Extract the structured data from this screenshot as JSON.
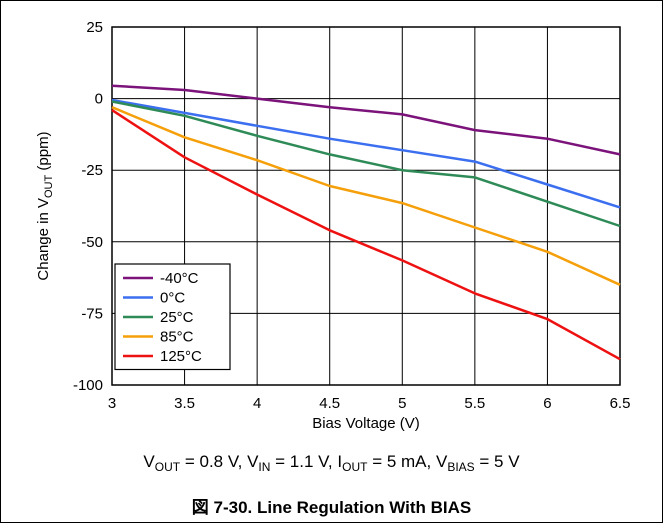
{
  "chart_data": {
    "type": "line",
    "xlabel": "Bias Voltage (V)",
    "ylabel_parts": {
      "main": "Change in V",
      "sub": "OUT",
      "suffix": " (ppm)"
    },
    "xlim": [
      3,
      6.5
    ],
    "ylim": [
      -100,
      25
    ],
    "x_ticks": [
      3,
      3.5,
      4,
      4.5,
      5,
      5.5,
      6,
      6.5
    ],
    "x_tick_labels": [
      "3",
      "3.5",
      "4",
      "4.5",
      "5",
      "5.5",
      "6",
      "6.5"
    ],
    "y_ticks": [
      25,
      0,
      -25,
      -50,
      -75,
      -100
    ],
    "y_tick_labels": [
      "25",
      "0",
      "-25",
      "-50",
      "-75",
      "-100"
    ],
    "grid": true,
    "legend_position": "bottom-left",
    "x": [
      3,
      3.5,
      4,
      4.5,
      5,
      5.5,
      6,
      6.5
    ],
    "series": [
      {
        "name": "-40°C",
        "color": "#7b137b",
        "values": [
          4.5,
          3,
          0,
          -3,
          -5.5,
          -11,
          -14,
          -19.5
        ]
      },
      {
        "name": "0°C",
        "color": "#3b6ff0",
        "values": [
          -0.5,
          -5,
          -9.5,
          -14,
          -18,
          -22,
          -30,
          -38
        ]
      },
      {
        "name": "25°C",
        "color": "#2e8b57",
        "values": [
          -1,
          -6,
          -13,
          -19.5,
          -25,
          -27.5,
          -36,
          -44.5
        ]
      },
      {
        "name": "85°C",
        "color": "#f5a00a",
        "values": [
          -3,
          -13.5,
          -21.5,
          -30.5,
          -36.5,
          -45,
          -53.5,
          -65
        ]
      },
      {
        "name": "125°C",
        "color": "#ee1111",
        "values": [
          -4,
          -20.5,
          -33.5,
          -46,
          -56.5,
          -68,
          -77,
          -91
        ]
      }
    ]
  },
  "caption": {
    "conditions": [
      {
        "main": "V",
        "sub": "OUT",
        "rest": " = 0.8 V, "
      },
      {
        "main": "V",
        "sub": "IN",
        "rest": " = 1.1 V, "
      },
      {
        "main": "I",
        "sub": "OUT",
        "rest": " = 5 mA, "
      },
      {
        "main": "V",
        "sub": "BIAS",
        "rest": " = 5 V"
      }
    ],
    "figure_title": "図 7-30. Line Regulation With BIAS"
  }
}
